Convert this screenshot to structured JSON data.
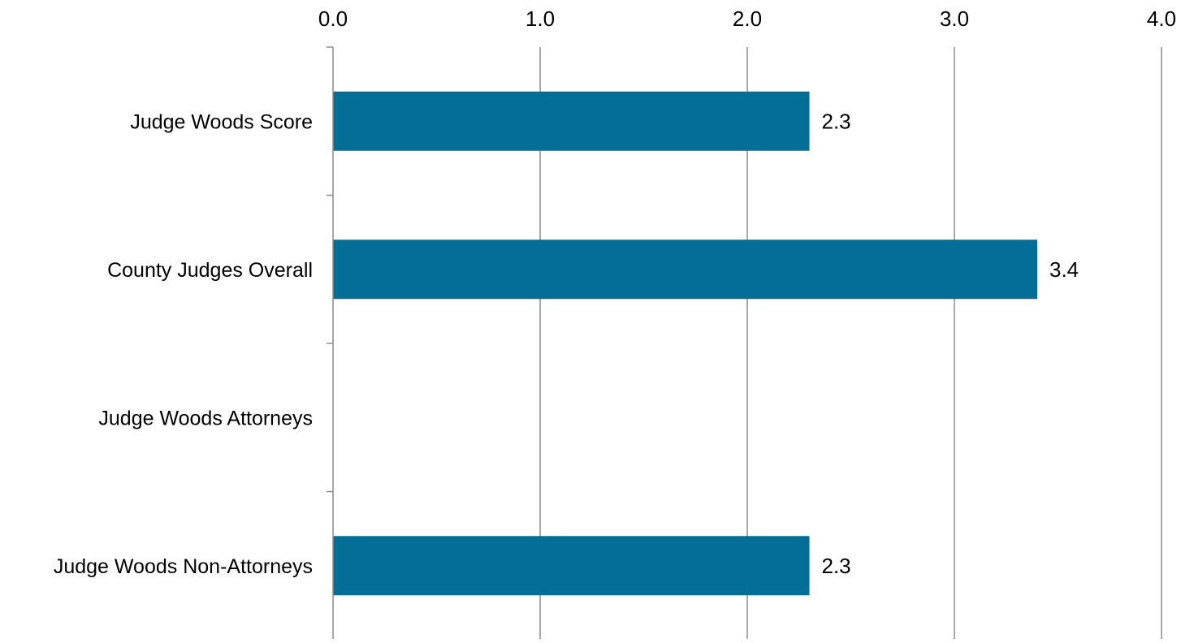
{
  "chart_data": {
    "type": "bar",
    "orientation": "horizontal",
    "title": "",
    "xlabel": "",
    "ylabel": "",
    "categories": [
      "Judge Woods Score",
      "County Judges Overall",
      "Judge Woods Attorneys",
      "Judge Woods Non-Attorneys"
    ],
    "values": [
      2.3,
      3.4,
      null,
      2.3
    ],
    "data_labels": [
      "2.3",
      "3.4",
      "",
      "2.3"
    ],
    "xlim": [
      0,
      4
    ],
    "x_ticks": [
      0,
      1,
      2,
      3,
      4
    ],
    "x_tick_labels": [
      "0.0",
      "1.0",
      "2.0",
      "3.0",
      "4.0"
    ],
    "x_axis_position": "top",
    "grid": "vertical",
    "legend": "none",
    "colors": {
      "bar": "#036E96",
      "grid": "#8C8C8C",
      "axis": "#8C8C8C",
      "text": "#000000"
    }
  }
}
